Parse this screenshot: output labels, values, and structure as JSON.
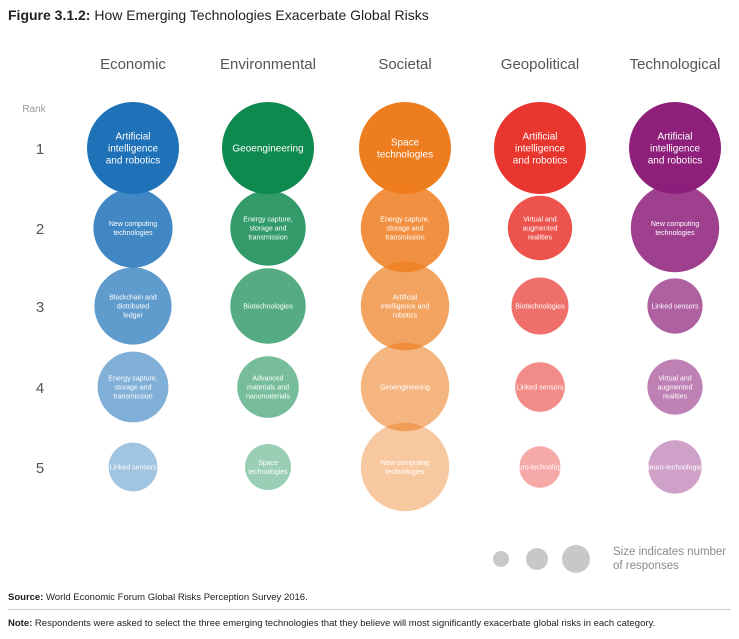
{
  "figure": {
    "label": "Figure 3.1.2:",
    "title": "How Emerging Technologies Exacerbate Global Risks"
  },
  "chart_data": {
    "type": "bubble-matrix",
    "row_header": "Rank",
    "ranks": [
      "1",
      "2",
      "3",
      "4",
      "5"
    ],
    "categories": [
      {
        "name": "Economic",
        "color": "#1F72B8",
        "items": [
          {
            "rank": 1,
            "label": "Artificial intelligence and robotics",
            "relative_size": 1.0
          },
          {
            "rank": 2,
            "label": "New computing technologies",
            "relative_size": 0.86
          },
          {
            "rank": 3,
            "label": "Blockchain and distributed ledger",
            "relative_size": 0.84
          },
          {
            "rank": 4,
            "label": "Energy capture, storage and transmission",
            "relative_size": 0.77
          },
          {
            "rank": 5,
            "label": "Linked sensors",
            "relative_size": 0.53
          }
        ]
      },
      {
        "name": "Environmental",
        "color": "#0F8A4F",
        "items": [
          {
            "rank": 1,
            "label": "Geoengineering",
            "relative_size": 1.0
          },
          {
            "rank": 2,
            "label": "Energy capture, storage and transmission",
            "relative_size": 0.82
          },
          {
            "rank": 3,
            "label": "Biotechnologies",
            "relative_size": 0.82
          },
          {
            "rank": 4,
            "label": "Advanced materials and nanomaterials",
            "relative_size": 0.67
          },
          {
            "rank": 5,
            "label": "Space technologies",
            "relative_size": 0.5
          }
        ]
      },
      {
        "name": "Societal",
        "color": "#EE7D1F",
        "items": [
          {
            "rank": 1,
            "label": "Space technologies",
            "relative_size": 1.0
          },
          {
            "rank": 2,
            "label": "Energy capture, storage and transmission",
            "relative_size": 0.96
          },
          {
            "rank": 3,
            "label": "Artificial intelligence and robotics",
            "relative_size": 0.96
          },
          {
            "rank": 4,
            "label": "Geoengineering",
            "relative_size": 0.96
          },
          {
            "rank": 5,
            "label": "New computing technologies",
            "relative_size": 0.96
          }
        ]
      },
      {
        "name": "Geopolitical",
        "color": "#E8352D",
        "items": [
          {
            "rank": 1,
            "label": "Artificial intelligence and robotics",
            "relative_size": 1.0
          },
          {
            "rank": 2,
            "label": "Virtual and augmented realities",
            "relative_size": 0.7
          },
          {
            "rank": 3,
            "label": "Biotechnologies",
            "relative_size": 0.62
          },
          {
            "rank": 4,
            "label": "Linked sensors",
            "relative_size": 0.54
          },
          {
            "rank": 5,
            "label": "Neuro-technologies",
            "relative_size": 0.45
          }
        ]
      },
      {
        "name": "Technological",
        "color": "#8E1F7B",
        "items": [
          {
            "rank": 1,
            "label": "Artificial intelligence and robotics",
            "relative_size": 1.0
          },
          {
            "rank": 2,
            "label": "New computing technologies",
            "relative_size": 0.96
          },
          {
            "rank": 3,
            "label": "Linked sensors",
            "relative_size": 0.6
          },
          {
            "rank": 4,
            "label": "Virtual and augmented realities",
            "relative_size": 0.6
          },
          {
            "rank": 5,
            "label": "Neuro-technologies",
            "relative_size": 0.58
          }
        ]
      }
    ],
    "legend": {
      "text": "Size indicates number of responses",
      "color": "#C8C8C8"
    }
  },
  "source": {
    "label": "Source:",
    "text": "World Economic Forum Global Risks Perception Survey 2016."
  },
  "note": {
    "label": "Note:",
    "text": "Respondents were asked to select the three emerging technologies that they believe will most significantly exacerbate global risks in each category."
  }
}
